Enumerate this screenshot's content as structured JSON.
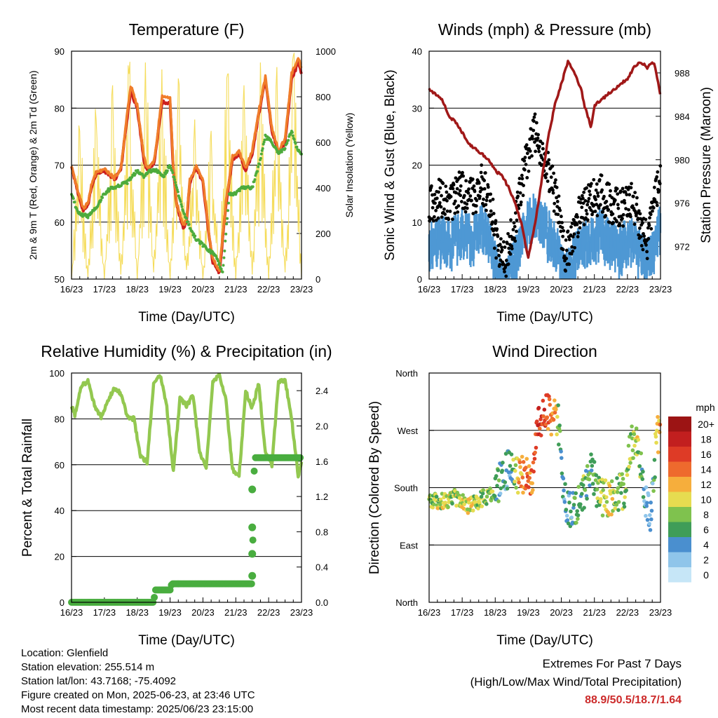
{
  "chart_data": [
    {
      "type": "line",
      "title": "Temperature (F)",
      "xlabel": "Time (Day/UTC)",
      "ylabel": "2m & 9m T (Red, Orange) & 2m Td (Green)",
      "ylabel_right": "Solar Insolation (Yellow)",
      "x_ticks": [
        "16/23",
        "17/23",
        "18/23",
        "19/23",
        "20/23",
        "21/23",
        "22/23",
        "23/23"
      ],
      "ylim": [
        50,
        90
      ],
      "y_ticks": [
        50,
        60,
        70,
        80,
        90
      ],
      "ylim_right": [
        0,
        1000
      ],
      "y_ticks_right": [
        0,
        200,
        400,
        600,
        800,
        1000
      ],
      "hlines": [
        60,
        70,
        80,
        90
      ],
      "colors": {
        "t2m": "#cc1f1f",
        "t9m": "#f07d2a",
        "td": "#4dab3c",
        "solar": "#f5dc5a"
      },
      "series": [
        {
          "name": "2m T",
          "x": [
            0,
            0.2,
            0.35,
            0.5,
            0.6,
            0.75,
            1.0,
            1.3,
            1.5,
            1.6,
            1.8,
            2.0,
            2.2,
            2.3,
            2.5,
            2.6,
            2.75,
            3.0,
            3.1,
            3.2,
            3.4,
            3.5,
            3.6,
            3.8,
            4.0,
            4.2,
            4.3,
            4.5,
            4.7,
            4.9,
            5.1,
            5.3,
            5.5,
            5.7,
            5.9,
            6.1,
            6.3,
            6.5,
            6.7,
            6.9,
            7.0
          ],
          "values": [
            69.5,
            65,
            62,
            63,
            66,
            68.5,
            69,
            67.5,
            69,
            74,
            83,
            80,
            71,
            69,
            70,
            74,
            81,
            81,
            69,
            63,
            59,
            60,
            67,
            69.5,
            67,
            57,
            53,
            51,
            63,
            71,
            72,
            69,
            72,
            79,
            85,
            76,
            72,
            74,
            85,
            88,
            86
          ]
        },
        {
          "name": "9m T",
          "x": [
            0,
            0.2,
            0.35,
            0.5,
            0.6,
            0.75,
            1.0,
            1.3,
            1.5,
            1.6,
            1.8,
            2.0,
            2.2,
            2.3,
            2.5,
            2.6,
            2.75,
            3.0,
            3.1,
            3.2,
            3.4,
            3.5,
            3.6,
            3.8,
            4.0,
            4.2,
            4.3,
            4.5,
            4.7,
            4.9,
            5.1,
            5.3,
            5.5,
            5.7,
            5.9,
            6.1,
            6.3,
            6.5,
            6.7,
            6.9,
            7.0
          ],
          "values": [
            69.8,
            65.3,
            62.4,
            63.4,
            66.4,
            68.8,
            69.3,
            67.8,
            69.3,
            74.4,
            84,
            80.5,
            71.5,
            69.4,
            70.4,
            74.6,
            82,
            81.6,
            69.5,
            63.4,
            59.4,
            60.4,
            67.5,
            69.9,
            67.4,
            57.4,
            53.5,
            51.5,
            63.5,
            71.5,
            72.4,
            69.4,
            72.5,
            79.5,
            85.5,
            76.5,
            72.5,
            74.6,
            86,
            89,
            87
          ]
        },
        {
          "name": "2m Td",
          "x": [
            0,
            0.2,
            0.5,
            0.8,
            1.0,
            1.2,
            1.5,
            1.7,
            2.0,
            2.2,
            2.4,
            2.6,
            2.8,
            3.0,
            3.2,
            3.4,
            3.6,
            3.8,
            4.0,
            4.2,
            4.4,
            4.6,
            4.8,
            5.0,
            5.2,
            5.5,
            5.7,
            5.9,
            6.1,
            6.3,
            6.5,
            6.7,
            6.85,
            7.0
          ],
          "values": [
            65,
            61.5,
            61,
            63,
            65,
            66,
            66.5,
            67,
            69,
            68,
            69,
            69,
            68,
            70,
            66,
            62,
            59,
            57,
            56,
            55,
            54,
            51,
            65,
            65,
            66,
            66,
            70,
            75,
            74,
            72,
            73,
            76,
            73,
            72
          ]
        },
        {
          "name": "Solar",
          "x": [
            0,
            0.25,
            0.5,
            0.75,
            1.0,
            1.25,
            1.5,
            1.75,
            2.0,
            2.25,
            2.5,
            2.75,
            3.0,
            3.25,
            3.5,
            3.75,
            4.0,
            4.25,
            4.5,
            4.75,
            5.0,
            5.25,
            5.5,
            5.75,
            6.0,
            6.25,
            6.5,
            6.75,
            7.0
          ],
          "values": [
            0,
            650,
            10,
            700,
            0,
            850,
            20,
            900,
            0,
            950,
            30,
            920,
            0,
            880,
            40,
            700,
            0,
            650,
            30,
            900,
            0,
            850,
            20,
            950,
            0,
            930,
            30,
            980,
            0
          ]
        }
      ]
    },
    {
      "type": "scatter",
      "title": "Winds (mph) & Pressure (mb)",
      "xlabel": "Time (Day/UTC)",
      "ylabel": "Sonic Wind & Gust (Blue, Black)",
      "ylabel_right": "Station Pressure (Maroon)",
      "x_ticks": [
        "16/23",
        "17/23",
        "18/23",
        "19/23",
        "20/23",
        "21/23",
        "22/23",
        "23/23"
      ],
      "ylim": [
        0,
        40
      ],
      "y_ticks": [
        0,
        10,
        20,
        30,
        40
      ],
      "ylim_right": [
        969,
        990
      ],
      "y_ticks_right": [
        972,
        976,
        980,
        984,
        988
      ],
      "hlines": [
        10,
        20,
        30,
        40
      ],
      "colors": {
        "wind": "#4e98d4",
        "gust": "#000000",
        "pressure": "#a01818"
      },
      "series": [
        {
          "name": "Pressure",
          "x": [
            0,
            0.2,
            0.4,
            0.6,
            0.8,
            1.0,
            1.2,
            1.4,
            1.6,
            1.8,
            2.0,
            2.2,
            2.4,
            2.6,
            2.8,
            3.0,
            3.2,
            3.4,
            3.6,
            3.8,
            4.0,
            4.2,
            4.4,
            4.6,
            4.7,
            4.8,
            4.9,
            5.0,
            5.2,
            5.4,
            5.6,
            5.8,
            6.0,
            6.2,
            6.4,
            6.6,
            6.8,
            7.0
          ],
          "values": [
            986.5,
            986,
            985.5,
            984,
            983.5,
            982.5,
            981.5,
            981,
            980.5,
            980,
            979,
            978.5,
            977.5,
            976,
            974,
            971,
            974,
            978,
            982,
            985,
            987,
            989,
            988,
            986.5,
            985,
            984,
            983,
            985,
            985.5,
            986,
            986.5,
            987,
            987.5,
            988.5,
            989,
            988.5,
            989,
            986
          ]
        },
        {
          "name": "Wind",
          "x": [
            0,
            0.3,
            0.6,
            1.0,
            1.3,
            1.6,
            1.9,
            2.1,
            2.3,
            2.6,
            2.9,
            3.2,
            3.4,
            3.6,
            3.9,
            4.1,
            4.3,
            4.6,
            4.9,
            5.2,
            5.5,
            5.8,
            6.0,
            6.2,
            6.4,
            6.6,
            6.8,
            7.0
          ],
          "values": [
            8,
            9,
            8,
            10,
            9,
            11,
            8,
            2,
            1,
            6,
            11,
            14,
            12,
            10,
            7,
            2,
            4,
            8,
            9,
            10,
            8,
            7,
            9,
            8,
            6,
            4,
            8,
            11
          ]
        },
        {
          "name": "Gust",
          "x": [
            0,
            0.3,
            0.6,
            1.0,
            1.3,
            1.6,
            1.9,
            2.1,
            2.3,
            2.6,
            2.9,
            3.2,
            3.4,
            3.6,
            3.9,
            4.1,
            4.3,
            4.6,
            4.9,
            5.2,
            5.5,
            5.8,
            6.0,
            6.2,
            6.4,
            6.6,
            6.8,
            7.0
          ],
          "values": [
            13,
            14,
            13,
            16,
            14,
            17,
            12,
            4,
            3,
            10,
            20,
            26,
            22,
            19,
            13,
            4,
            7,
            12,
            14,
            15,
            13,
            12,
            14,
            13,
            9,
            7,
            13,
            18
          ]
        }
      ]
    },
    {
      "type": "line",
      "title": "Relative Humidity (%) & Precipitation (in)",
      "xlabel": "Time (Day/UTC)",
      "ylabel": "Percent & Total Rainfall",
      "x_ticks": [
        "16/23",
        "17/23",
        "18/23",
        "19/23",
        "20/23",
        "21/23",
        "22/23",
        "23/23"
      ],
      "ylim": [
        0,
        100
      ],
      "y_ticks": [
        0,
        20,
        40,
        60,
        80,
        100
      ],
      "ylim_right": [
        0,
        2.6
      ],
      "y_ticks_right": [
        "0.0",
        "0.4",
        "0.8",
        "1.2",
        "1.6",
        "2.0",
        "2.4"
      ],
      "hlines": [
        20,
        40,
        60,
        80,
        100
      ],
      "colors": {
        "rh": "#93c850",
        "precip": "#49ad3f"
      },
      "series": [
        {
          "name": "RH",
          "x": [
            0,
            0.1,
            0.3,
            0.5,
            0.7,
            0.9,
            1.1,
            1.3,
            1.5,
            1.7,
            1.9,
            2.1,
            2.3,
            2.5,
            2.7,
            2.9,
            3.1,
            3.3,
            3.5,
            3.7,
            3.9,
            4.1,
            4.3,
            4.5,
            4.7,
            4.9,
            5.1,
            5.3,
            5.5,
            5.7,
            5.9,
            6.1,
            6.3,
            6.5,
            6.7,
            6.9,
            7.0
          ],
          "values": [
            86,
            82,
            94,
            97,
            86,
            81,
            88,
            93,
            91,
            81,
            80,
            64,
            61,
            95,
            99,
            85,
            57,
            89,
            86,
            90,
            65,
            59,
            96,
            99,
            88,
            58,
            55,
            92,
            85,
            95,
            65,
            60,
            96,
            97,
            80,
            55,
            62
          ]
        },
        {
          "name": "Precip",
          "x": [
            0,
            2.5,
            2.55,
            3.0,
            3.05,
            5.5,
            5.55,
            5.6,
            7.0
          ],
          "values": [
            0,
            0,
            0.14,
            0.14,
            0.21,
            0.21,
            1.45,
            1.64,
            1.64
          ]
        }
      ]
    },
    {
      "type": "scatter",
      "title": "Wind Direction",
      "xlabel": "Time (Day/UTC)",
      "ylabel": "Direction (Colored By Speed)",
      "x_ticks": [
        "16/23",
        "17/23",
        "18/23",
        "19/23",
        "20/23",
        "21/23",
        "22/23",
        "23/23"
      ],
      "y_ticks": [
        "North",
        "East",
        "South",
        "West",
        "North"
      ],
      "ylim": [
        0,
        360
      ],
      "legend_title": "mph",
      "legend_labels": [
        "0",
        "2",
        "4",
        "6",
        "8",
        "10",
        "12",
        "14",
        "16",
        "18",
        "20+"
      ],
      "legend_colors": [
        "#c6e6f7",
        "#8fc5ea",
        "#4a8fcf",
        "#3f9d58",
        "#7fc24e",
        "#e6dc50",
        "#f6ae3c",
        "#ee6a2d",
        "#de3b26",
        "#c21f1f",
        "#9c1414"
      ],
      "series": [
        {
          "name": "Direction",
          "x": [
            0,
            0.4,
            0.8,
            1.2,
            1.6,
            1.9,
            2.1,
            2.3,
            2.5,
            2.7,
            2.9,
            3.1,
            3.3,
            3.5,
            3.7,
            3.9,
            4.1,
            4.3,
            4.5,
            4.7,
            4.9,
            5.1,
            5.3,
            5.5,
            5.7,
            5.9,
            6.1,
            6.3,
            6.5,
            6.7,
            6.9,
            7.0
          ],
          "values": [
            160,
            158,
            165,
            150,
            163,
            170,
            185,
            205,
            215,
            195,
            205,
            190,
            280,
            300,
            290,
            285,
            160,
            145,
            150,
            175,
            215,
            170,
            165,
            160,
            170,
            175,
            250,
            260,
            165,
            140,
            270,
            250
          ],
          "speeds": [
            8,
            9,
            9,
            10,
            8,
            8,
            6,
            4,
            5,
            12,
            13,
            14,
            17,
            15,
            14,
            8,
            4,
            5,
            6,
            7,
            5,
            8,
            9,
            10,
            8,
            7,
            8,
            9,
            4,
            3,
            10,
            11
          ]
        }
      ]
    }
  ],
  "footer": {
    "location": "Location: Glenfield",
    "elevation": "Station elevation: 255.514 m",
    "latlon": "Station lat/lon: 43.7168; -75.4092",
    "created": "Figure created on Mon, 2025-06-23, at 23:46 UTC",
    "recent": "Most recent data timestamp: 2025/06/23 23:15:00"
  },
  "extremes": {
    "title": "Extremes For Past 7 Days",
    "subtitle": "(High/Low/Max Wind/Total Precipitation)",
    "values": "88.9/50.5/18.7/1.64"
  }
}
